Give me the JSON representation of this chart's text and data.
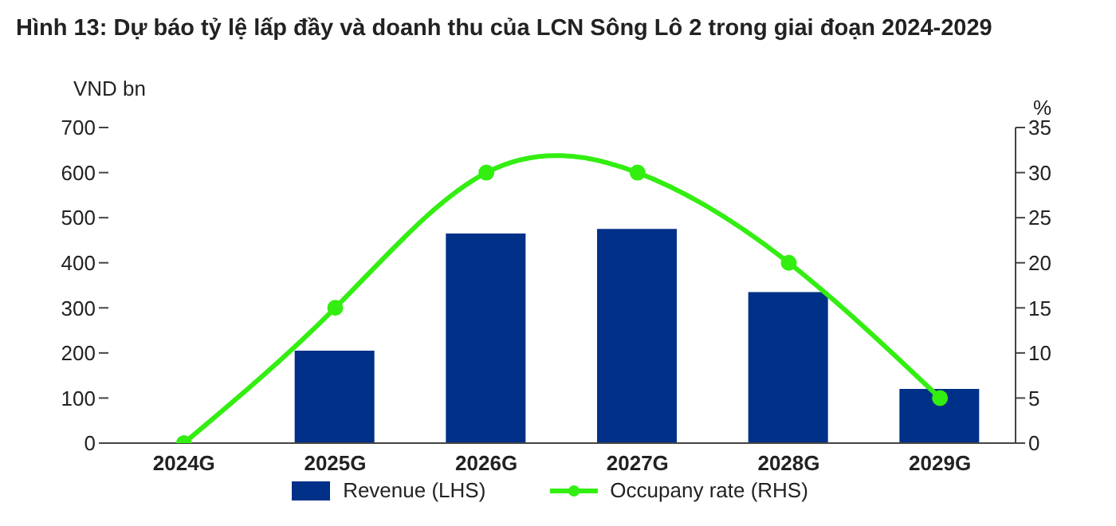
{
  "chart_data": {
    "type": "bar",
    "title": "Hình 13: Dự báo tỷ lệ lấp đầy và doanh thu của LCN Sông Lô 2 trong giai đoạn 2024-2029",
    "ylabel": "VND bn",
    "y2label": "%",
    "categories": [
      "2024G",
      "2025G",
      "2026G",
      "2027G",
      "2028G",
      "2029G"
    ],
    "series": [
      {
        "name": "Revenue (LHS)",
        "color": "#003087",
        "values": [
          0,
          205,
          465,
          475,
          335,
          120
        ]
      },
      {
        "name": "Occupany rate (RHS)",
        "type": "line",
        "axis": "y2",
        "color": "#33ee11",
        "marker": "circle",
        "values": [
          0,
          15,
          30,
          30,
          20,
          5
        ]
      }
    ],
    "ylim": [
      0,
      700
    ],
    "yticks": [
      0,
      100,
      200,
      300,
      400,
      500,
      600,
      700
    ],
    "y2lim": [
      0,
      35
    ],
    "y2ticks": [
      0,
      5,
      10,
      15,
      20,
      25,
      30,
      35
    ],
    "grid": false,
    "legend": "bottom"
  }
}
